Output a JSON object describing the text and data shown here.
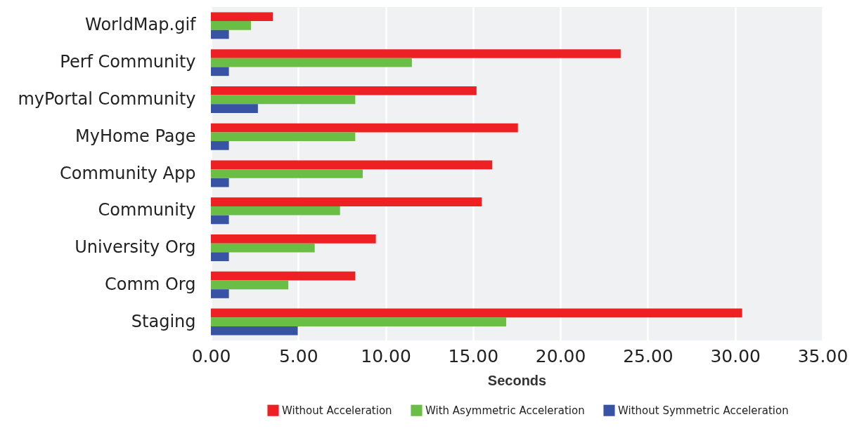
{
  "chart_data": {
    "type": "bar",
    "orientation": "horizontal",
    "xlabel": "Seconds",
    "categories": [
      "WorldMap.gif",
      "Perf Community",
      "myPortal Community",
      "MyHome Page",
      "Community App",
      "Community",
      "University Org",
      "Comm Org",
      "Staging"
    ],
    "series": [
      {
        "name": "Without Acceleration",
        "color": "#ed2024",
        "values": [
          3.55,
          23.45,
          15.2,
          17.57,
          16.1,
          15.5,
          9.44,
          8.26,
          30.4
        ]
      },
      {
        "name": "With Asymmetric Acceleration",
        "color": "#6abd45",
        "values": [
          2.29,
          11.5,
          8.26,
          8.26,
          8.69,
          7.39,
          5.94,
          4.43,
          16.9
        ]
      },
      {
        "name": "Without Symmetric Acceleration",
        "color": "#3953a4",
        "values": [
          1.03,
          1.03,
          2.69,
          1.03,
          1.03,
          1.03,
          1.03,
          1.03,
          4.97
        ]
      }
    ],
    "xlim": [
      0,
      35
    ],
    "xticks": [
      {
        "value": 0,
        "label": "0.00"
      },
      {
        "value": 5,
        "label": "5.00"
      },
      {
        "value": 10,
        "label": "10.00"
      },
      {
        "value": 15,
        "label": "15.00"
      },
      {
        "value": 20,
        "label": "20.00"
      },
      {
        "value": 25,
        "label": "25.00"
      },
      {
        "value": 30,
        "label": "30.00"
      },
      {
        "value": 35,
        "label": "35.00"
      }
    ],
    "grid": "x",
    "legend": "bottom"
  }
}
